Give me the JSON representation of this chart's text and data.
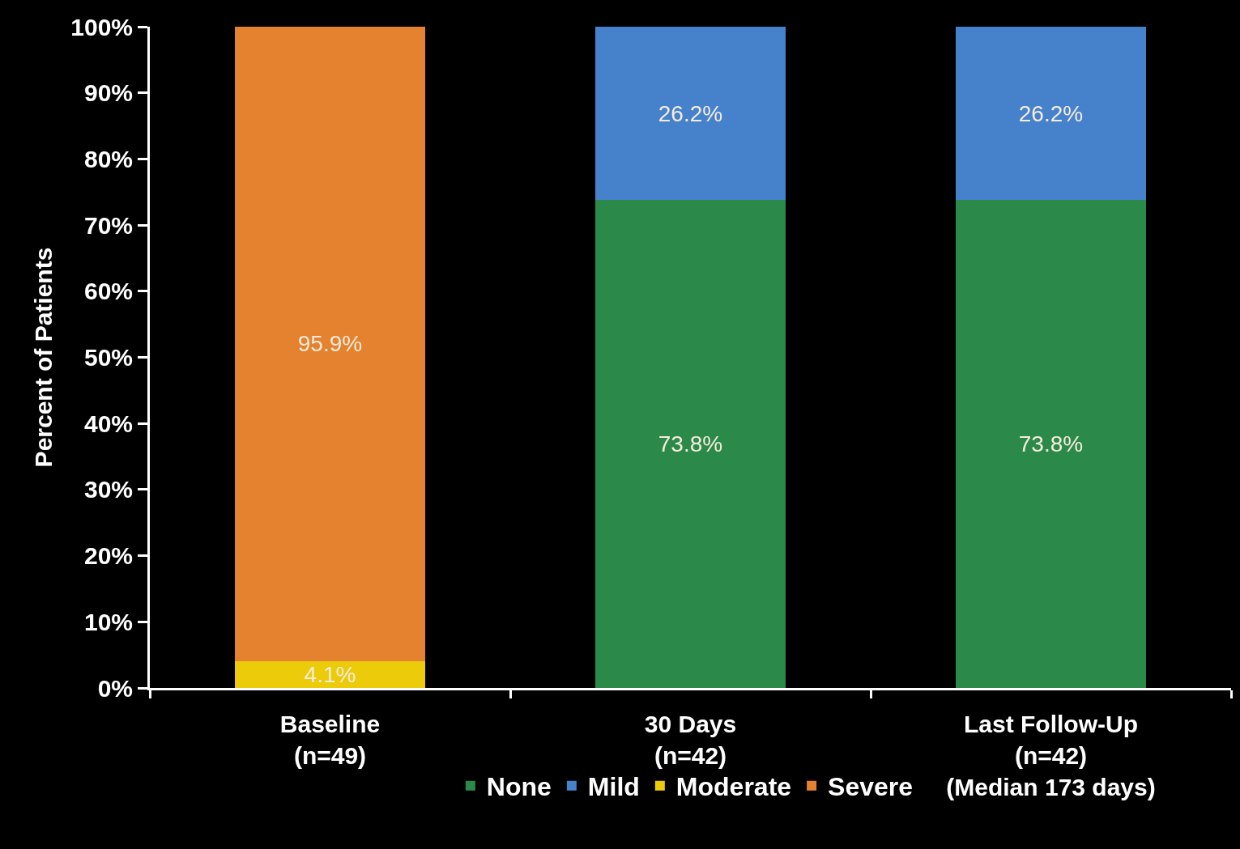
{
  "chart_data": {
    "type": "bar",
    "stacked": true,
    "categories": [
      "Baseline\n(n=49)",
      "30 Days\n(n=42)",
      "Last Follow-Up\n(n=42)\n(Median 173 days)"
    ],
    "ylabel": "Percent of Patients",
    "ylim": [
      0,
      100
    ],
    "yticks": [
      {
        "value": 0,
        "label": "0%"
      },
      {
        "value": 10,
        "label": "10%"
      },
      {
        "value": 20,
        "label": "20%"
      },
      {
        "value": 30,
        "label": "30%"
      },
      {
        "value": 40,
        "label": "40%"
      },
      {
        "value": 50,
        "label": "50%"
      },
      {
        "value": 60,
        "label": "60%"
      },
      {
        "value": 70,
        "label": "70%"
      },
      {
        "value": 80,
        "label": "80%"
      },
      {
        "value": 90,
        "label": "90%"
      },
      {
        "value": 100,
        "label": "100%"
      }
    ],
    "series": [
      {
        "name": "None",
        "color": "#2b8a4a",
        "values": [
          0,
          73.8,
          73.8
        ],
        "value_labels": [
          null,
          "73.8%",
          "73.8%"
        ]
      },
      {
        "name": "Mild",
        "color": "#4682cc",
        "values": [
          0,
          26.2,
          26.2
        ],
        "value_labels": [
          null,
          "26.2%",
          "26.2%"
        ]
      },
      {
        "name": "Moderate",
        "color": "#eccb0a",
        "values": [
          4.1,
          0,
          0
        ],
        "value_labels": [
          "4.1%",
          null,
          null
        ]
      },
      {
        "name": "Severe",
        "color": "#e5822f",
        "values": [
          95.9,
          0,
          0
        ],
        "value_labels": [
          "95.9%",
          null,
          null
        ]
      }
    ],
    "grid": false,
    "legend": "bottom"
  }
}
